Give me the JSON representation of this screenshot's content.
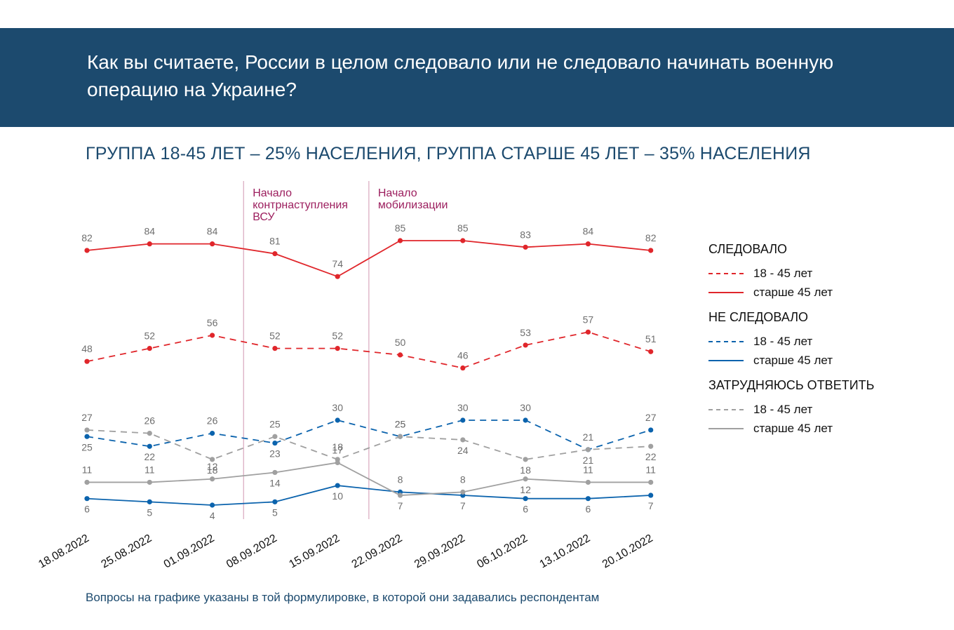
{
  "header": {
    "title": "Как вы считаете, России в целом следовало или не следовало начинать военную операцию на Украине?"
  },
  "subtitle": "ГРУППА 18-45 ЛЕТ – 25% НАСЕЛЕНИЯ, ГРУППА СТАРШЕ 45 ЛЕТ – 35% НАСЕЛЕНИЯ",
  "footnote": "Вопросы на графике указаны в той формулировке, в которой они задавались респондентам",
  "legend": {
    "groups": [
      {
        "title": "СЛЕДОВАЛО",
        "items": [
          "18 - 45 лет",
          "старше 45 лет"
        ]
      },
      {
        "title": "НЕ СЛЕДОВАЛО",
        "items": [
          "18 - 45 лет",
          "старше 45 лет"
        ]
      },
      {
        "title": "ЗАТРУДНЯЮСЬ ОТВЕТИТЬ",
        "items": [
          "18 - 45 лет",
          "старше 45 лет"
        ]
      }
    ]
  },
  "colors": {
    "header_bg": "#1c4a6e",
    "should": "#e0262b",
    "should_not": "#0b63ad",
    "hard_to_say": "#a0a0a0",
    "annotation": "#9c1e5e"
  },
  "chart_data": {
    "type": "line",
    "x": [
      "18.08.2022",
      "25.08.2022",
      "01.09.2022",
      "08.09.2022",
      "15.09.2022",
      "22.09.2022",
      "29.09.2022",
      "06.10.2022",
      "13.10.2022",
      "20.10.2022"
    ],
    "annotations": [
      {
        "between": [
          "01.09.2022",
          "08.09.2022"
        ],
        "text": [
          "Начало",
          "контрнаступления",
          "ВСУ"
        ]
      },
      {
        "between": [
          "15.09.2022",
          "22.09.2022"
        ],
        "text": [
          "Начало",
          "мобилизации"
        ]
      }
    ],
    "series": [
      {
        "group": "СЛЕДОВАЛО",
        "name": "18 - 45 лет",
        "style": "dashed",
        "color": "#e0262b",
        "values": [
          48,
          52,
          56,
          52,
          52,
          50,
          46,
          53,
          57,
          51
        ]
      },
      {
        "group": "СЛЕДОВАЛО",
        "name": "старше 45 лет",
        "style": "solid",
        "color": "#e0262b",
        "values": [
          82,
          84,
          84,
          81,
          74,
          85,
          85,
          83,
          84,
          82
        ]
      },
      {
        "group": "НЕ СЛЕДОВАЛО",
        "name": "18 - 45 лет",
        "style": "dashed",
        "color": "#0b63ad",
        "values": [
          25,
          22,
          26,
          23,
          30,
          25,
          30,
          30,
          21,
          27
        ]
      },
      {
        "group": "НЕ СЛЕДОВАЛО",
        "name": "старше 45 лет",
        "style": "solid",
        "color": "#0b63ad",
        "values": [
          6,
          5,
          4,
          5,
          10,
          8,
          7,
          6,
          6,
          7
        ]
      },
      {
        "group": "ЗАТРУДНЯЮСЬ ОТВЕТИТЬ",
        "name": "18 - 45 лет",
        "style": "dashed",
        "color": "#a0a0a0",
        "values": [
          27,
          26,
          18,
          25,
          18,
          25,
          24,
          18,
          21,
          22
        ]
      },
      {
        "group": "ЗАТРУДНЯЮСЬ ОТВЕТИТЬ",
        "name": "старше 45 лет",
        "style": "solid",
        "color": "#a0a0a0",
        "values": [
          11,
          11,
          12,
          14,
          17,
          7,
          8,
          12,
          11,
          11
        ]
      }
    ],
    "value_labels": [
      {
        "series": 1,
        "pos": [
          "above",
          "above",
          "above",
          "above",
          "above",
          "above",
          "above",
          "above",
          "above",
          "above"
        ]
      },
      {
        "series": 0,
        "pos": [
          "above",
          "above",
          "above",
          "above",
          "above",
          "above",
          "above",
          "above",
          "above",
          "above"
        ]
      },
      {
        "series": 2,
        "pos": [
          "below",
          "below",
          "above",
          "below",
          "above",
          "above",
          "above",
          "above",
          "above",
          "above"
        ]
      },
      {
        "series": 4,
        "pos": [
          "above",
          "above",
          "below",
          "above",
          "above",
          "above",
          "below",
          "below",
          "below",
          "below"
        ]
      },
      {
        "series": 5,
        "pos": [
          "above",
          "above",
          "above",
          "below",
          "above",
          "below",
          "above",
          "below",
          "above",
          "above"
        ]
      },
      {
        "series": 3,
        "pos": [
          "below",
          "below",
          "below",
          "below",
          "below",
          "above",
          "below",
          "below",
          "below",
          "below"
        ]
      }
    ],
    "ylim": [
      0,
      90
    ],
    "grid": false
  }
}
